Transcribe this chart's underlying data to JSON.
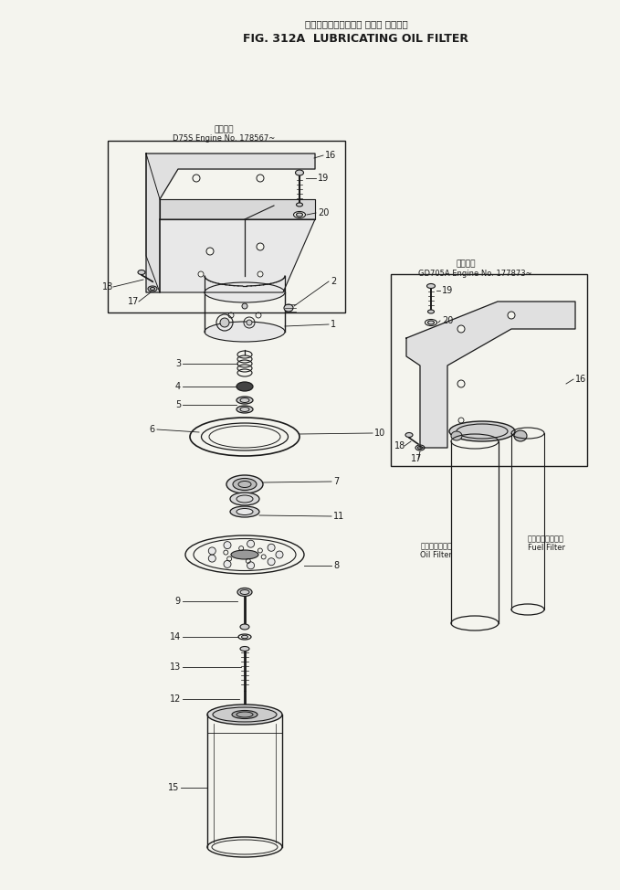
{
  "title_jp": "ルーブリケーティング オイル フィルタ",
  "title_en": "FIG. 312A  LUBRICATING OIL FILTER",
  "bg_color": "#f4f4ee",
  "line_color": "#1a1a1a",
  "box1_label_jp": "適用号機",
  "box1_label_en": "D75S Engine No. 178567~",
  "box2_label_jp": "適用号機",
  "box2_label_en": "GD705A Engine No. 177873~",
  "oil_filter_label_jp": "オイルフィルタ",
  "oil_filter_label_en": "Oil Filter",
  "fuel_filter_label_jp": "フェエルフィルタ",
  "fuel_filter_label_en": "Fuel Filter"
}
